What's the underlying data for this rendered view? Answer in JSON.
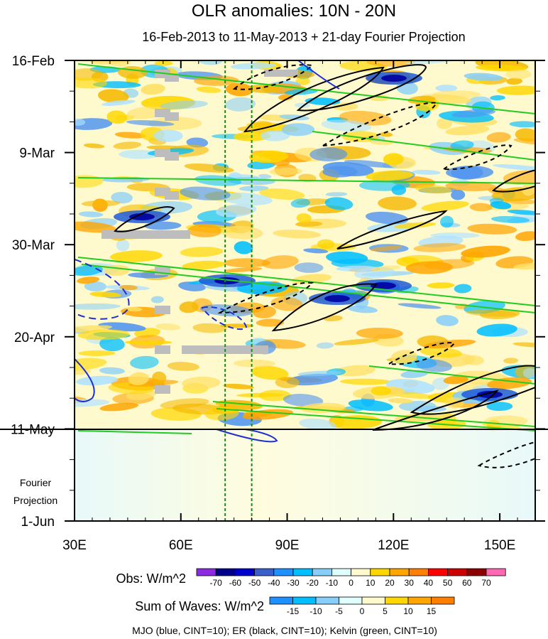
{
  "title": "OLR anomalies: 10N - 20N",
  "subtitle": "16-Feb-2013 to 11-May-2013 + 21-day Fourier Projection",
  "chart_data": {
    "type": "heatmap",
    "x_axis": {
      "range": [
        30,
        160
      ],
      "ticks": [
        30,
        60,
        90,
        120,
        150
      ],
      "tick_labels": [
        "30E",
        "60E",
        "90E",
        "120E",
        "150E"
      ]
    },
    "y_axis": {
      "range": [
        "2013-02-16",
        "2013-06-01"
      ],
      "ticks": [
        "2013-02-16",
        "2013-03-09",
        "2013-03-30",
        "2013-04-20",
        "2013-05-11",
        "2013-06-01"
      ],
      "tick_labels": [
        "16-Feb",
        "9-Mar",
        "30-Mar",
        "20-Apr",
        "11-May",
        "1-Jun"
      ],
      "inverted": true
    },
    "annotations": {
      "projection_label": [
        "Fourier",
        "Projection"
      ],
      "observed_end": "2013-05-11",
      "dashed_longitudes": [
        72.5,
        80
      ]
    },
    "obs_colorbar": {
      "label": "Obs: W/m^2",
      "levels": [
        "-70",
        "-60",
        "-50",
        "-40",
        "-30",
        "-20",
        "-10",
        "0",
        "10",
        "20",
        "30",
        "40",
        "50",
        "60",
        "70"
      ],
      "colors": [
        "#8a2be2",
        "#00008b",
        "#0000cd",
        "#3a5fcd",
        "#1e90ff",
        "#00bfff",
        "#87cefa",
        "#e0ffff",
        "#fffacd",
        "#ffd700",
        "#ffa500",
        "#ff7f00",
        "#ff0000",
        "#cd0000",
        "#8b0000",
        "#ff69b4"
      ]
    },
    "waves_colorbar": {
      "label": "Sum of Waves: W/m^2",
      "levels": [
        "-15",
        "-10",
        "-5",
        "0",
        "5",
        "10",
        "15"
      ],
      "colors": [
        "#1e90ff",
        "#00bfff",
        "#87cefa",
        "#e0ffff",
        "#fffacd",
        "#ffd700",
        "#ffa500",
        "#ff7f00"
      ]
    },
    "footer": "MJO (blue, CINT=10); ER (black, CINT=10); Kelvin (green, CINT=10)",
    "contour_colors": {
      "mjo": "#1f2fd0",
      "er": "#000000",
      "kelvin": "#22cc22"
    }
  }
}
